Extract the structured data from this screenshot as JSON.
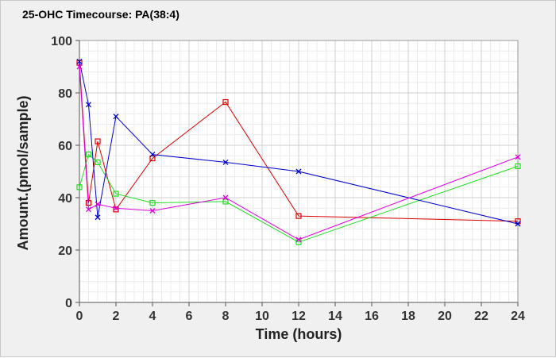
{
  "chart_data": {
    "type": "line",
    "title": "25-OHC Timecourse: PA(38:4)",
    "xlabel": "Time (hours)",
    "ylabel": "Amount.(pmol/sample)",
    "xlim": [
      0,
      24
    ],
    "ylim": [
      0,
      100
    ],
    "xticks": [
      0,
      2,
      4,
      6,
      8,
      10,
      12,
      14,
      16,
      18,
      20,
      22,
      24
    ],
    "yticks": [
      0,
      20,
      40,
      60,
      80,
      100
    ],
    "grid": true,
    "series": [
      {
        "color": "#dd0000",
        "marker": "square",
        "x": [
          0,
          0.5,
          1,
          2,
          4,
          8,
          12,
          24
        ],
        "y": [
          91.5,
          38,
          61.5,
          35.5,
          55,
          76.5,
          33,
          31
        ]
      },
      {
        "color": "#22dd22",
        "marker": "square",
        "x": [
          0,
          0.5,
          1,
          2,
          4,
          8,
          12,
          24
        ],
        "y": [
          44,
          56.5,
          53.5,
          41.5,
          38,
          38.5,
          23,
          52
        ]
      },
      {
        "color": "#0000cc",
        "marker": "x",
        "x": [
          0,
          0.5,
          1,
          2,
          4,
          8,
          12,
          24
        ],
        "y": [
          92,
          75.5,
          32.5,
          71,
          56.5,
          53.5,
          50,
          30
        ]
      },
      {
        "color": "#dd00dd",
        "marker": "x",
        "x": [
          0,
          0.5,
          1,
          2,
          4,
          8,
          12,
          24
        ],
        "y": [
          90,
          35.5,
          37.5,
          36,
          35,
          40,
          24,
          55.5
        ]
      }
    ]
  }
}
